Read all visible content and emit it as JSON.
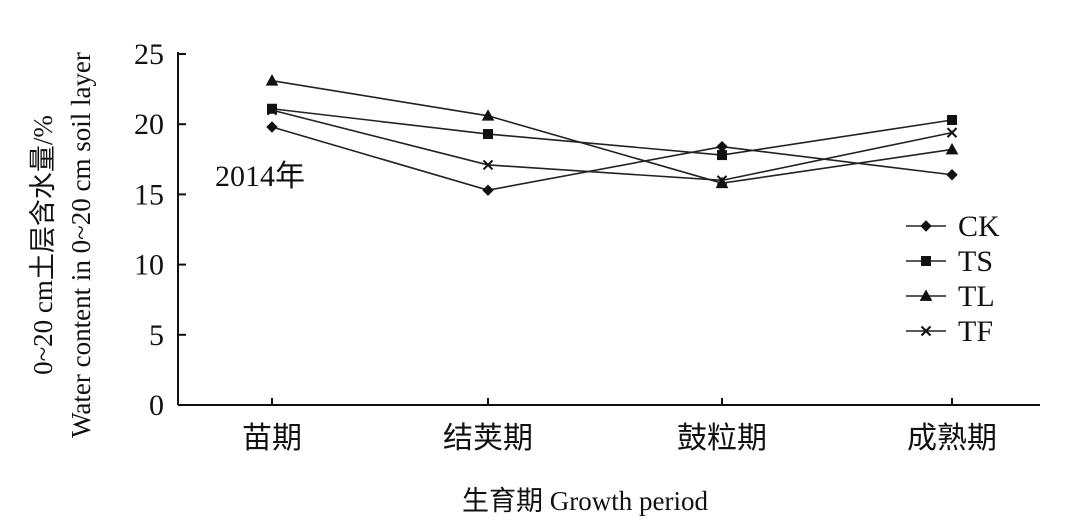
{
  "chart_data": {
    "type": "line",
    "categories": [
      "苗期",
      "结荚期",
      "鼓粒期",
      "成熟期"
    ],
    "series": [
      {
        "name": "CK",
        "marker": "diamond",
        "values": [
          19.8,
          15.3,
          18.4,
          16.4
        ]
      },
      {
        "name": "TS",
        "marker": "square",
        "values": [
          21.1,
          19.3,
          17.8,
          20.3
        ]
      },
      {
        "name": "TL",
        "marker": "triangle",
        "values": [
          23.1,
          20.6,
          15.8,
          18.2
        ]
      },
      {
        "name": "TF",
        "marker": "x",
        "values": [
          21.0,
          17.1,
          16.0,
          19.4
        ]
      }
    ],
    "ylim": [
      0,
      25
    ],
    "yticks": [
      0,
      5,
      10,
      15,
      20,
      25
    ],
    "xlabel": "生育期 Growth period",
    "ylabel_line1": "0~20 cm土层含水量/%",
    "ylabel_line2": "Water content in 0~20 cm soil layer",
    "annotation": "2014年",
    "legend_position": "right",
    "grid": false
  }
}
